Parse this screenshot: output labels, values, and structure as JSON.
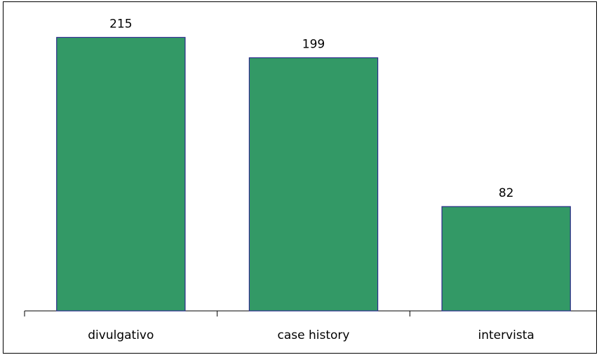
{
  "chart_data": {
    "type": "bar",
    "categories": [
      "divulgativo",
      "case history",
      "intervista"
    ],
    "values": [
      215,
      199,
      82
    ],
    "data_labels": [
      "215",
      "199",
      "82"
    ],
    "title": "",
    "xlabel": "",
    "ylabel": "",
    "ylim": [
      0,
      240
    ],
    "grid": false,
    "legend": "none",
    "colors": {
      "bar_fill": "#339966",
      "bar_stroke": "#2a2a8a",
      "axis": "#000000"
    }
  }
}
